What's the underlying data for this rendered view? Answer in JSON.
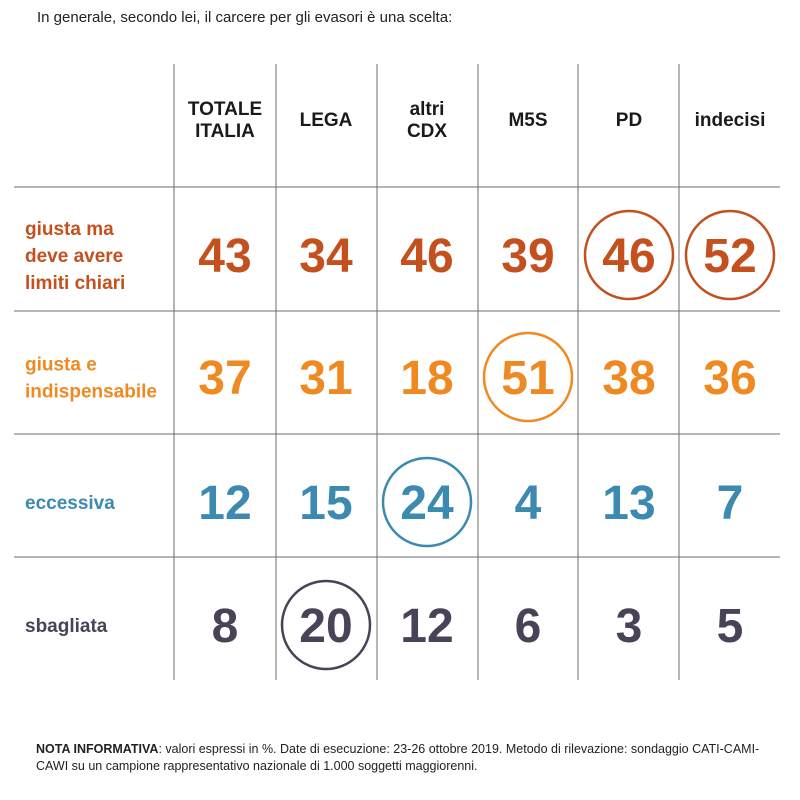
{
  "question": "In generale, secondo lei, il carcere per gli evasori è una scelta:",
  "chart_data": {
    "type": "table",
    "columns": [
      [
        "TOTALE",
        "ITALIA"
      ],
      [
        "LEGA"
      ],
      [
        "altri",
        "CDX"
      ],
      [
        "M5S"
      ],
      [
        "PD"
      ],
      [
        "indecisi"
      ]
    ],
    "rows": [
      {
        "label": [
          "giusta ma",
          "deve avere",
          "limiti chiari"
        ],
        "color": "#c4501e",
        "values": [
          43,
          34,
          46,
          39,
          46,
          52
        ],
        "circled": [
          4,
          5
        ]
      },
      {
        "label": [
          "giusta e",
          "indispensabile"
        ],
        "color": "#ef8a22",
        "values": [
          37,
          31,
          18,
          51,
          38,
          36
        ],
        "circled": [
          3
        ]
      },
      {
        "label": [
          "eccessiva"
        ],
        "color": "#3c8ab0",
        "values": [
          12,
          15,
          24,
          4,
          13,
          7
        ],
        "circled": [
          2
        ]
      },
      {
        "label": [
          "sbagliata"
        ],
        "color": "#4a4257",
        "values": [
          8,
          20,
          12,
          6,
          3,
          5
        ],
        "circled": [
          1
        ]
      }
    ]
  },
  "note": {
    "label": "NOTA INFORMATIVA",
    "text": ": valori espressi in %. Date di esecuzione: 23-26 ottobre 2019. Metodo di rilevazione: sondaggio CATI-CAMI-CAWI su un campione rappresentativo nazionale di 1.000 soggetti maggiorenni."
  }
}
